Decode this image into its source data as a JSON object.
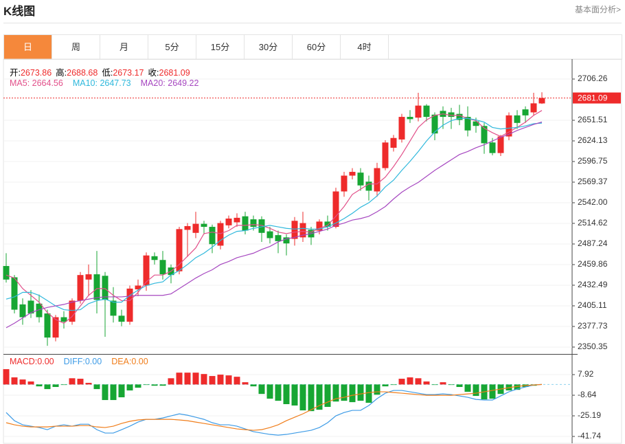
{
  "header": {
    "title": "K线图",
    "link": "基本面分析>"
  },
  "tabs": {
    "items": [
      "日",
      "周",
      "月",
      "5分",
      "15分",
      "30分",
      "60分",
      "4时"
    ],
    "active": 0
  },
  "chart_data": [
    {
      "type": "candlestick",
      "info": [
        "开:",
        "高:",
        "低:",
        "收:"
      ],
      "open": [
        2458,
        2443,
        2407,
        2412,
        2408,
        2395,
        2363,
        2390,
        2384,
        2412,
        2440,
        2447,
        2445,
        2412,
        2392,
        2384,
        2427,
        2432,
        2471,
        2466,
        2456,
        2451,
        2506,
        2502,
        2514,
        2510,
        2485,
        2512,
        2516,
        2524,
        2520,
        2520,
        2504,
        2499,
        2496,
        2494,
        2496,
        2506,
        2505,
        2517,
        2510,
        2557,
        2578,
        2582,
        2570,
        2557,
        2588,
        2615,
        2626,
        2656,
        2655,
        2671,
        2659,
        2664,
        2662,
        2660,
        2656,
        2650,
        2644,
        2622,
        2608,
        2630,
        2658,
        2666,
        2662,
        2673.86
      ],
      "high": [
        2475,
        2446,
        2415,
        2426,
        2420,
        2400,
        2393,
        2398,
        2415,
        2450,
        2460,
        2478,
        2450,
        2430,
        2400,
        2432,
        2440,
        2476,
        2476,
        2478,
        2460,
        2510,
        2515,
        2530,
        2518,
        2513,
        2518,
        2525,
        2528,
        2530,
        2525,
        2524,
        2510,
        2505,
        2500,
        2523,
        2530,
        2510,
        2520,
        2525,
        2562,
        2583,
        2588,
        2588,
        2578,
        2595,
        2625,
        2632,
        2660,
        2665,
        2688,
        2673,
        2662,
        2670,
        2668,
        2672,
        2670,
        2655,
        2648,
        2628,
        2632,
        2662,
        2665,
        2670,
        2688,
        2688.68
      ],
      "low": [
        2436,
        2395,
        2380,
        2389,
        2383,
        2352,
        2358,
        2375,
        2380,
        2408,
        2418,
        2395,
        2364,
        2383,
        2378,
        2380,
        2418,
        2425,
        2460,
        2440,
        2435,
        2447,
        2470,
        2495,
        2500,
        2475,
        2480,
        2508,
        2510,
        2500,
        2505,
        2490,
        2488,
        2475,
        2472,
        2485,
        2490,
        2486,
        2500,
        2505,
        2508,
        2550,
        2573,
        2558,
        2545,
        2550,
        2585,
        2610,
        2622,
        2648,
        2650,
        2650,
        2625,
        2640,
        2640,
        2645,
        2630,
        2635,
        2607,
        2605,
        2604,
        2625,
        2640,
        2648,
        2658,
        2673.17
      ],
      "close": [
        2440,
        2400,
        2390,
        2395,
        2390,
        2363,
        2390,
        2384,
        2412,
        2446,
        2447,
        2413,
        2413,
        2392,
        2384,
        2428,
        2432,
        2472,
        2466,
        2447,
        2446,
        2507,
        2511,
        2514,
        2510,
        2487,
        2515,
        2521,
        2522,
        2505,
        2510,
        2502,
        2495,
        2491,
        2488,
        2518,
        2515,
        2496,
        2517,
        2510,
        2557,
        2578,
        2583,
        2565,
        2558,
        2588,
        2622,
        2628,
        2656,
        2653,
        2671,
        2656,
        2634,
        2656,
        2656,
        2652,
        2638,
        2644,
        2621,
        2608,
        2630,
        2658,
        2648,
        2658,
        2674,
        2681.09
      ],
      "up_color": "#ee2b2b",
      "down_color": "#17a633",
      "series": [
        {
          "color": "#e2508a",
          "values": [
            2446,
            2442,
            2428,
            2419,
            2410,
            2396,
            2387,
            2382,
            2391,
            2405,
            2419,
            2428,
            2428,
            2419,
            2412,
            2412,
            2423,
            2437,
            2446,
            2446,
            2451,
            2460,
            2471,
            2482,
            2501,
            2503,
            2501,
            2505,
            2512,
            2512,
            2513,
            2512,
            2508,
            2503,
            2501,
            2503,
            2504,
            2503,
            2508,
            2512,
            2524,
            2537,
            2553,
            2560,
            2567,
            2567,
            2576,
            2590,
            2606,
            2624,
            2642,
            2652,
            2658,
            2660,
            2658,
            2658,
            2654,
            2651,
            2641,
            2635,
            2630,
            2636,
            2642,
            2649,
            2658,
            2664.56
          ]
        },
        {
          "color": "#2fb8dc",
          "values": [
            2414,
            2417,
            2423,
            2423,
            2419,
            2412,
            2405,
            2400,
            2399,
            2400,
            2408,
            2412,
            2414,
            2410,
            2410,
            2419,
            2426,
            2432,
            2435,
            2437,
            2446,
            2452,
            2460,
            2469,
            2475,
            2483,
            2492,
            2499,
            2504,
            2505,
            2508,
            2510,
            2512,
            2510,
            2508,
            2507,
            2508,
            2507,
            2507,
            2510,
            2515,
            2521,
            2528,
            2536,
            2542,
            2551,
            2563,
            2572,
            2585,
            2597,
            2610,
            2624,
            2636,
            2645,
            2651,
            2654,
            2654,
            2652,
            2649,
            2642,
            2640,
            2641,
            2642,
            2644,
            2647,
            2647.73
          ]
        },
        {
          "color": "#a647c0",
          "values": [
            2376,
            2382,
            2389,
            2396,
            2400,
            2403,
            2405,
            2407,
            2410,
            2412,
            2414,
            2416,
            2417,
            2417,
            2417,
            2418,
            2419,
            2419,
            2419,
            2419,
            2421,
            2428,
            2435,
            2442,
            2448,
            2453,
            2460,
            2464,
            2469,
            2472,
            2475,
            2480,
            2484,
            2490,
            2494,
            2496,
            2499,
            2501,
            2504,
            2507,
            2512,
            2515,
            2519,
            2521,
            2524,
            2530,
            2537,
            2547,
            2556,
            2563,
            2569,
            2577,
            2585,
            2592,
            2599,
            2606,
            2610,
            2615,
            2619,
            2624,
            2629,
            2633,
            2638,
            2642,
            2646,
            2649.22
          ]
        }
      ],
      "legend": [
        "MA5: 2664.56",
        "MA10: 2647.73",
        "MA20: 2649.22"
      ],
      "ylim": [
        2341.2,
        2730.9
      ],
      "yticks": [
        2706.26,
        2651.51,
        2624.13,
        2596.75,
        2569.37,
        {
          "value": 2542,
          "label": "2542.00"
        },
        2514.62,
        2487.24,
        2459.86,
        2432.49,
        2405.11,
        2377.73,
        2350.35
      ],
      "grid": true
    },
    {
      "type": "macd",
      "legend": [
        "MACD:0.00",
        "DIFF:0.00",
        "DEA:0.00"
      ],
      "values": [
        12.3,
        5.7,
        4,
        2.4,
        -1.5,
        -3.7,
        -2,
        -0.4,
        5,
        4.6,
        1.3,
        -3.7,
        -12.5,
        -12.5,
        -10.3,
        -4.8,
        -2.6,
        -0.4,
        -1,
        -1,
        5,
        9.5,
        9.5,
        9.5,
        8.4,
        6.8,
        7.9,
        7.3,
        6.2,
        1.8,
        -1.5,
        -7.6,
        -11.4,
        -13.1,
        -15.8,
        -16.9,
        -20.8,
        -21.4,
        -20.3,
        -18,
        -13.7,
        -13.1,
        -14.2,
        -13.1,
        -14.7,
        -8.2,
        -1.5,
        -0.4,
        4.6,
        5.7,
        5,
        2.4,
        -0.4,
        1.8,
        -0.4,
        -2,
        -5.9,
        -9.2,
        -12,
        -11.4,
        -7.6,
        -4.8,
        -4.3,
        -2,
        -1,
        0
      ],
      "up_color": "#ee2b2b",
      "down_color": "#17a633",
      "series": [
        {
          "color": "#3d9be6",
          "values": [
            -22.5,
            -29.1,
            -32.4,
            -33.5,
            -34.6,
            -36.3,
            -33.5,
            -32.4,
            -33.5,
            -31.9,
            -31.9,
            -36.3,
            -39,
            -39,
            -36.3,
            -33.5,
            -30.2,
            -28,
            -28,
            -26.9,
            -25.2,
            -23.6,
            -24.7,
            -26.3,
            -28,
            -30.7,
            -32.4,
            -32.4,
            -33.5,
            -35.7,
            -37.9,
            -39,
            -40.1,
            -40.7,
            -40.1,
            -39,
            -37.9,
            -36.8,
            -34.6,
            -30.7,
            -25.2,
            -22.5,
            -20.8,
            -20.8,
            -16.9,
            -11.4,
            -7,
            -4.8,
            -4.8,
            -5.9,
            -7,
            -8.1,
            -8.1,
            -7.6,
            -8.1,
            -9.2,
            -10.3,
            -12,
            -12.5,
            -12.5,
            -9.2,
            -5.9,
            -3.7,
            -2,
            -0.4,
            0
          ]
        },
        {
          "color": "#f07d1a",
          "values": [
            -30.7,
            -32.4,
            -33.5,
            -34.1,
            -34.1,
            -34.1,
            -33.5,
            -33.5,
            -33.5,
            -33,
            -33,
            -34.1,
            -34.6,
            -33.5,
            -31.3,
            -29.6,
            -28.5,
            -28,
            -28,
            -28,
            -28,
            -28.5,
            -29.1,
            -30.2,
            -31.3,
            -32.4,
            -33.5,
            -34.6,
            -35.7,
            -36.3,
            -36.8,
            -36.3,
            -34.6,
            -32.4,
            -29.1,
            -26.3,
            -23.6,
            -20.3,
            -16.9,
            -14.2,
            -11.4,
            -10.3,
            -8.7,
            -7.6,
            -6.5,
            -5.9,
            -5.9,
            -6.5,
            -7,
            -7.6,
            -8.1,
            -8.7,
            -8.7,
            -8.7,
            -8.7,
            -8.1,
            -7.6,
            -7,
            -5.9,
            -4.8,
            -3.7,
            -2.6,
            -1.5,
            -0.9,
            -0.4,
            0
          ]
        }
      ],
      "ylim": [
        -47.26,
        23.4
      ],
      "yticks": [
        7.92,
        -8.64,
        -25.19,
        -41.74
      ],
      "grid": true
    }
  ]
}
